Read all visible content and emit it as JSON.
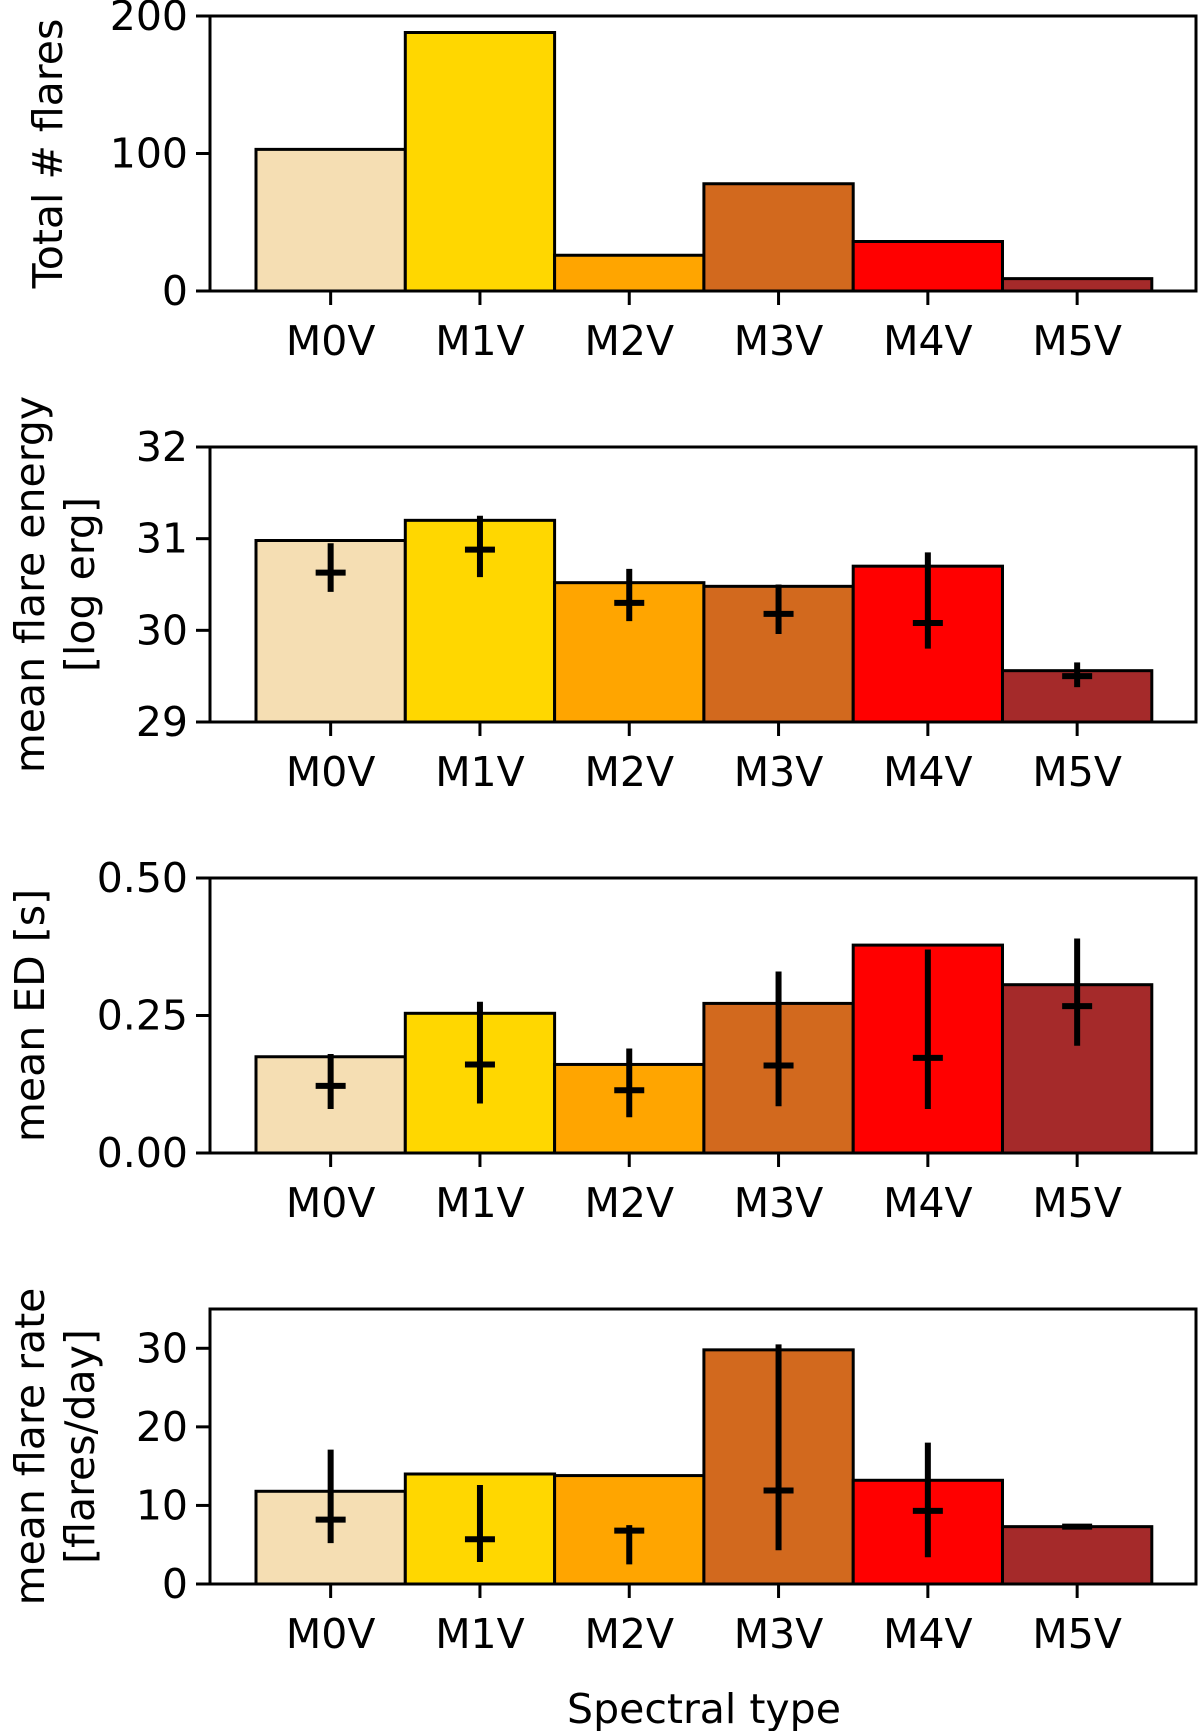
{
  "chart_data": [
    {
      "type": "bar",
      "categories": [
        "M0V",
        "M1V",
        "M2V",
        "M3V",
        "M4V",
        "M5V"
      ],
      "colors": [
        "#f5deb3",
        "#ffd700",
        "#ffa500",
        "#d2691e",
        "#ff0000",
        "#a52a2a"
      ],
      "values": [
        103,
        188,
        26,
        78,
        36,
        9
      ],
      "ylabel_lines": [
        "Total # flares"
      ],
      "ylim": [
        0,
        200
      ],
      "yticks": [
        0,
        100,
        200
      ],
      "ytick_labels": [
        "0",
        "100",
        "200"
      ],
      "xlabel": ""
    },
    {
      "type": "bar",
      "categories": [
        "M0V",
        "M1V",
        "M2V",
        "M3V",
        "M4V",
        "M5V"
      ],
      "colors": [
        "#f5deb3",
        "#ffd700",
        "#ffa500",
        "#d2691e",
        "#ff0000",
        "#a52a2a"
      ],
      "values": [
        30.98,
        31.2,
        30.52,
        30.48,
        30.7,
        29.56
      ],
      "markers": [
        30.63,
        30.88,
        30.3,
        30.18,
        30.08,
        29.5
      ],
      "error_low": [
        30.42,
        30.58,
        30.1,
        29.96,
        29.8,
        29.38
      ],
      "error_high": [
        30.95,
        31.25,
        30.67,
        30.5,
        30.85,
        29.65
      ],
      "ylabel_lines": [
        "mean flare energy",
        "[log erg]"
      ],
      "ylim": [
        29,
        32
      ],
      "yticks": [
        29,
        30,
        31,
        32
      ],
      "ytick_labels": [
        "29",
        "30",
        "31",
        "32"
      ],
      "xlabel": ""
    },
    {
      "type": "bar",
      "categories": [
        "M0V",
        "M1V",
        "M2V",
        "M3V",
        "M4V",
        "M5V"
      ],
      "colors": [
        "#f5deb3",
        "#ffd700",
        "#ffa500",
        "#d2691e",
        "#ff0000",
        "#a52a2a"
      ],
      "values": [
        0.175,
        0.254,
        0.161,
        0.272,
        0.378,
        0.306
      ],
      "markers": [
        0.122,
        0.161,
        0.114,
        0.159,
        0.173,
        0.267
      ],
      "error_low": [
        0.08,
        0.09,
        0.065,
        0.085,
        0.08,
        0.195
      ],
      "error_high": [
        0.18,
        0.275,
        0.19,
        0.33,
        0.37,
        0.39
      ],
      "ylabel_lines": [
        "mean ED [s]"
      ],
      "ylim": [
        0,
        0.5
      ],
      "yticks": [
        0,
        0.25,
        0.5
      ],
      "ytick_labels": [
        "0.00",
        "0.25",
        "0.50"
      ],
      "xlabel": ""
    },
    {
      "type": "bar",
      "categories": [
        "M0V",
        "M1V",
        "M2V",
        "M3V",
        "M4V",
        "M5V"
      ],
      "colors": [
        "#f5deb3",
        "#ffd700",
        "#ffa500",
        "#d2691e",
        "#ff0000",
        "#a52a2a"
      ],
      "values": [
        11.8,
        14.0,
        13.8,
        29.8,
        13.2,
        7.3
      ],
      "markers": [
        8.2,
        5.7,
        6.8,
        11.9,
        9.3,
        7.3
      ],
      "error_low": [
        5.2,
        2.8,
        2.5,
        4.3,
        3.4,
        7.1
      ],
      "error_high": [
        17.1,
        12.6,
        7.5,
        30.5,
        18.0,
        7.5
      ],
      "ylabel_lines": [
        "mean flare rate",
        "[flares/day]"
      ],
      "ylim": [
        0,
        35
      ],
      "yticks": [
        0,
        10,
        20,
        30
      ],
      "ytick_labels": [
        "0",
        "10",
        "20",
        "30"
      ],
      "xlabel": "Spectral type"
    }
  ]
}
